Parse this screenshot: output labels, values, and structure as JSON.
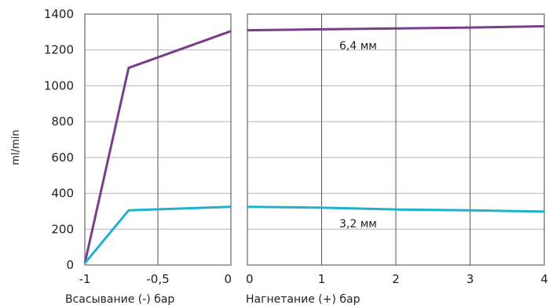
{
  "chart_data": [
    {
      "type": "line",
      "xlabel": "Всасывание (-) бар",
      "ylabel": "ml/min",
      "xlim": [
        -1,
        0
      ],
      "ylim": [
        0,
        1400
      ],
      "x_ticks": [
        "-1",
        "-0,5",
        "0"
      ],
      "y_ticks": [
        "0",
        "200",
        "400",
        "600",
        "800",
        "1000",
        "1200",
        "1400"
      ],
      "grid": true,
      "series": [
        {
          "color": "#7a3d8c",
          "x": [
            -1,
            -0.7,
            0
          ],
          "y": [
            10,
            1100,
            1305
          ]
        },
        {
          "color": "#1fb1cc",
          "x": [
            -1,
            -0.7,
            0
          ],
          "y": [
            10,
            305,
            325
          ]
        }
      ]
    },
    {
      "type": "line",
      "xlabel": "Нагнетание (+) бар",
      "xlim": [
        0,
        4
      ],
      "ylim": [
        0,
        1400
      ],
      "x_ticks": [
        "0",
        "1",
        "2",
        "3",
        "4"
      ],
      "grid": true,
      "series": [
        {
          "name": "6,4 мм",
          "color": "#7a3d8c",
          "x": [
            0,
            1,
            2,
            3,
            4
          ],
          "y": [
            1310,
            1315,
            1320,
            1325,
            1332
          ]
        },
        {
          "name": "3,2 мм",
          "color": "#1fb1cc",
          "x": [
            0,
            1,
            2,
            3,
            4
          ],
          "y": [
            325,
            320,
            310,
            305,
            298
          ]
        }
      ]
    }
  ]
}
